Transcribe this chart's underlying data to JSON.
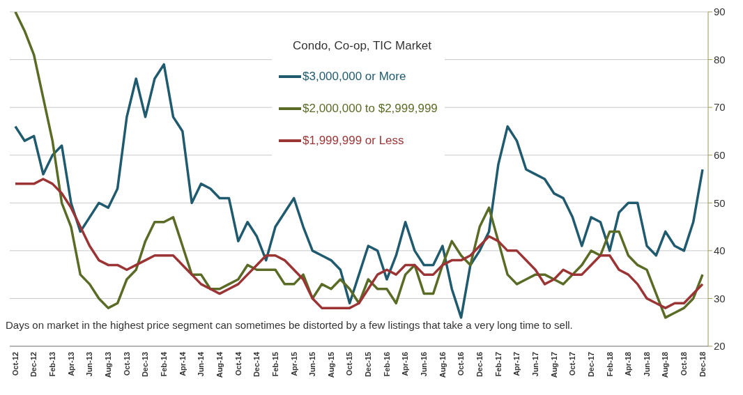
{
  "chart_data": {
    "type": "line",
    "legend_title": "Condo, Co-op, TIC Market",
    "categories": [
      "Oct-12",
      null,
      "Dec-12",
      null,
      "Feb-13",
      null,
      "Apr-13",
      null,
      "Jun-13",
      null,
      "Aug-13",
      null,
      "Oct-13",
      null,
      "Dec-13",
      null,
      "Feb-14",
      null,
      "Apr-14",
      null,
      "Jun-14",
      null,
      "Aug-14",
      null,
      "Oct-14",
      null,
      "Dec-14",
      null,
      "Feb-15",
      null,
      "Apr-15",
      null,
      "Jun-15",
      null,
      "Aug-15",
      null,
      "Oct-15",
      null,
      "Dec-15",
      null,
      "Feb-16",
      null,
      "Apr-16",
      null,
      "Jun-16",
      null,
      "Aug-16",
      null,
      "Oct-16",
      null,
      "Dec-16",
      null,
      "Feb-17",
      null,
      "Apr-17",
      null,
      "Jun-17",
      null,
      "Aug-17",
      null,
      "Oct-17",
      null,
      "Dec-17",
      null,
      "Feb-18",
      null,
      "Apr-18",
      null,
      "Jun-18",
      null,
      "Aug-18",
      null,
      "Oct-18",
      null,
      "Dec-18"
    ],
    "series": [
      {
        "name": "$3,000,000 or More",
        "color": "#1f5a6e",
        "values": [
          66,
          63,
          64,
          56,
          60,
          62,
          50,
          44,
          47,
          50,
          49,
          53,
          68,
          76,
          68,
          76,
          79,
          68,
          65,
          50,
          54,
          53,
          51,
          51,
          42,
          46,
          43,
          38,
          45,
          48,
          51,
          45,
          40,
          39,
          38,
          36,
          29,
          35,
          41,
          40,
          34,
          39,
          46,
          40,
          37,
          37,
          41,
          32,
          26,
          37,
          40,
          44,
          58,
          66,
          63,
          57,
          56,
          55,
          52,
          51,
          47,
          41,
          47,
          46,
          40,
          48,
          50,
          50,
          41,
          39,
          44,
          41,
          40,
          46,
          57
        ]
      },
      {
        "name": "$2,000,000 to $2,999,999",
        "color": "#5a6b26",
        "values": [
          90,
          86,
          81,
          72,
          63,
          50,
          45,
          35,
          33,
          30,
          28,
          29,
          34,
          36,
          42,
          46,
          46,
          47,
          41,
          35,
          35,
          32,
          32,
          33,
          34,
          37,
          36,
          36,
          36,
          33,
          33,
          35,
          30,
          33,
          32,
          34,
          32,
          29,
          34,
          32,
          32,
          29,
          35,
          37,
          31,
          31,
          37,
          42,
          39,
          37,
          45,
          49,
          42,
          35,
          33,
          34,
          35,
          35,
          34,
          33,
          35,
          37,
          40,
          39,
          44,
          44,
          39,
          37,
          36,
          31,
          26,
          27,
          28,
          30,
          35
        ]
      },
      {
        "name": "$1,999,999 or Less",
        "color": "#9b3535",
        "values": [
          54,
          54,
          54,
          55,
          54,
          52,
          49,
          45,
          41,
          38,
          37,
          37,
          36,
          37,
          38,
          39,
          39,
          39,
          37,
          35,
          33,
          32,
          31,
          32,
          33,
          35,
          37,
          39,
          39,
          38,
          36,
          34,
          30,
          28,
          28,
          28,
          28,
          29,
          32,
          35,
          36,
          35,
          37,
          37,
          35,
          35,
          37,
          38,
          38,
          39,
          41,
          43,
          42,
          40,
          40,
          38,
          36,
          33,
          34,
          36,
          35,
          35,
          37,
          39,
          39,
          36,
          35,
          33,
          30,
          29,
          28,
          29,
          29,
          31,
          33
        ]
      }
    ],
    "ylim": [
      20,
      90
    ],
    "yticks": [
      20,
      30,
      40,
      50,
      60,
      70,
      80,
      90
    ],
    "grid": "y",
    "legend": "top",
    "marker": "none",
    "line_style": "solid",
    "annotations": [
      "Days on market in the highest price segment can sometimes be distorted by a few listings that take a very long time to sell."
    ]
  }
}
